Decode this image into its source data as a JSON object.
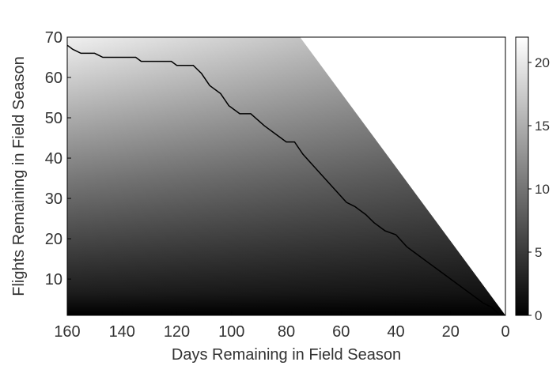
{
  "chart_data": {
    "type": "heatmap",
    "title": "",
    "xlabel": "Days Remaining in Field Season",
    "ylabel": "Flights Remaining in Field Season",
    "x_reversed": true,
    "xlim": [
      160,
      0
    ],
    "ylim": [
      1,
      70
    ],
    "x_ticks": [
      160,
      140,
      120,
      100,
      80,
      60,
      40,
      20,
      0
    ],
    "y_ticks": [
      10,
      20,
      30,
      40,
      50,
      60,
      70
    ],
    "colorbar": {
      "range": [
        0,
        22
      ],
      "ticks": [
        0,
        5,
        10,
        15,
        20
      ],
      "colormap": "gray"
    },
    "heatmap": {
      "description_of_values": "value increases with flights remaining and days remaining; cells where flights remaining exceed feasible limit are undefined (white)",
      "undefined_region_boundary": [
        [
          0,
          1
        ],
        [
          75,
          70
        ]
      ],
      "value_at": [
        {
          "days": 160,
          "flights": 1,
          "value": 0
        },
        {
          "days": 160,
          "flights": 35,
          "value": 12
        },
        {
          "days": 160,
          "flights": 70,
          "value": 22
        },
        {
          "days": 80,
          "flights": 70,
          "value": 20
        },
        {
          "days": 10,
          "flights": 10,
          "value": 3
        }
      ]
    },
    "series": [
      {
        "type": "line",
        "color": "#000000",
        "x": [
          160,
          158,
          155,
          150,
          147,
          135,
          133,
          122,
          120,
          114,
          111,
          108,
          104,
          101,
          97,
          93,
          88,
          84,
          80,
          77,
          74,
          70,
          66,
          62,
          58,
          55,
          51,
          48,
          44,
          40,
          36,
          32,
          28,
          24,
          20,
          16,
          12,
          8,
          5,
          2,
          0
        ],
        "y": [
          68,
          67,
          66,
          66,
          65,
          65,
          64,
          64,
          63,
          63,
          61,
          58,
          56,
          53,
          51,
          51,
          48,
          46,
          44,
          44,
          41,
          38,
          35,
          32,
          29,
          28,
          26,
          24,
          22,
          21,
          18,
          16,
          14,
          12,
          10,
          8,
          6,
          4,
          3,
          1,
          1
        ]
      }
    ]
  }
}
